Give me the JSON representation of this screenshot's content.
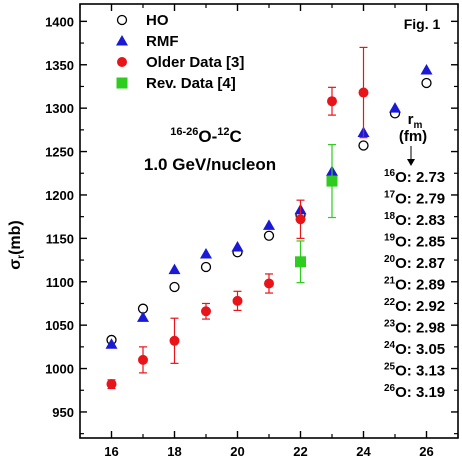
{
  "chart_data": {
    "type": "scatter",
    "title": "",
    "xlabel": "",
    "ylabel": "σr(mb)",
    "xlim": [
      15,
      27
    ],
    "ylim": [
      920,
      1420
    ],
    "x_ticks": [
      16,
      18,
      20,
      22,
      24,
      26
    ],
    "y_ticks": [
      950,
      1000,
      1050,
      1100,
      1150,
      1200,
      1250,
      1300,
      1350,
      1400
    ],
    "legend_placement": "top-left",
    "series": [
      {
        "name": "HO",
        "marker": "open-circle",
        "color": "#000000",
        "points": [
          [
            16,
            1033
          ],
          [
            17,
            1069
          ],
          [
            18,
            1094
          ],
          [
            19,
            1117
          ],
          [
            20,
            1134
          ],
          [
            21,
            1153
          ],
          [
            22,
            1177
          ],
          [
            23,
            1222
          ],
          [
            24,
            1257
          ],
          [
            25,
            1294
          ],
          [
            26,
            1329
          ]
        ]
      },
      {
        "name": "RMF",
        "marker": "triangle",
        "color": "#1a1ad6",
        "points": [
          [
            16,
            1028
          ],
          [
            17,
            1059
          ],
          [
            18,
            1114
          ],
          [
            19,
            1132
          ],
          [
            20,
            1140
          ],
          [
            21,
            1165
          ],
          [
            22,
            1183
          ],
          [
            23,
            1227
          ],
          [
            24,
            1272
          ],
          [
            25,
            1300
          ],
          [
            26,
            1344
          ]
        ]
      },
      {
        "name": "Older Data [3]",
        "marker": "filled-circle",
        "color": "#e8141a",
        "points": [
          [
            16,
            982,
            5
          ],
          [
            17,
            1010,
            15
          ],
          [
            18,
            1032,
            26
          ],
          [
            19,
            1066,
            9
          ],
          [
            20,
            1078,
            11
          ],
          [
            21,
            1098,
            11
          ],
          [
            22,
            1172,
            22
          ],
          [
            23,
            1308,
            16
          ],
          [
            24,
            1318,
            52
          ]
        ]
      },
      {
        "name": "Rev. Data [4]",
        "marker": "filled-square",
        "color": "#2ecc1f",
        "points": [
          [
            22,
            1123,
            24
          ],
          [
            23,
            1216,
            42
          ]
        ]
      }
    ],
    "annotations": {
      "reaction_line1_sup1": "16-26",
      "reaction_line1_main1": "O-",
      "reaction_line1_sup2": "12",
      "reaction_line1_main2": "C",
      "reaction_line2": "1.0 GeV/nucleon",
      "fig_label": "Fig. 1",
      "rm_header": "r",
      "rm_sub": "m",
      "rm_unit": "(fm)"
    },
    "radii": [
      {
        "mass": "16",
        "label": "O: 2.73"
      },
      {
        "mass": "17",
        "label": "O: 2.79"
      },
      {
        "mass": "18",
        "label": "O: 2.83"
      },
      {
        "mass": "19",
        "label": "O: 2.85"
      },
      {
        "mass": "20",
        "label": "O: 2.87"
      },
      {
        "mass": "21",
        "label": "O: 2.89"
      },
      {
        "mass": "22",
        "label": "O: 2.92"
      },
      {
        "mass": "23",
        "label": "O: 2.98"
      },
      {
        "mass": "24",
        "label": "O: 3.05"
      },
      {
        "mass": "25",
        "label": "O: 3.13"
      },
      {
        "mass": "26",
        "label": "O: 3.19"
      }
    ]
  }
}
